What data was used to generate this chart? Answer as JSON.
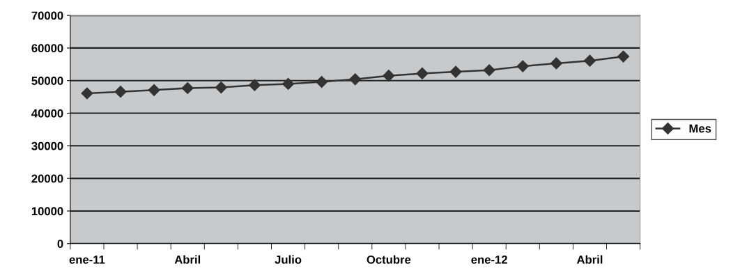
{
  "chart_data": {
    "type": "line",
    "categories": [
      "ene-11",
      null,
      null,
      "Abril",
      null,
      null,
      "Julio",
      null,
      null,
      "Octubre",
      null,
      null,
      "ene-12",
      null,
      null,
      "Abril",
      null
    ],
    "series": [
      {
        "name": "Mes",
        "color": "#333333",
        "values": [
          46100,
          46600,
          47100,
          47700,
          47900,
          48600,
          49000,
          49600,
          50400,
          51500,
          52200,
          52700,
          53200,
          54400,
          55300,
          56100,
          57400
        ]
      }
    ],
    "ylim": [
      0,
      70000
    ],
    "yticks": [
      0,
      10000,
      20000,
      30000,
      40000,
      50000,
      60000,
      70000
    ],
    "grid": "y",
    "legend": "right",
    "marker": "diamond",
    "line_style": "solid"
  }
}
